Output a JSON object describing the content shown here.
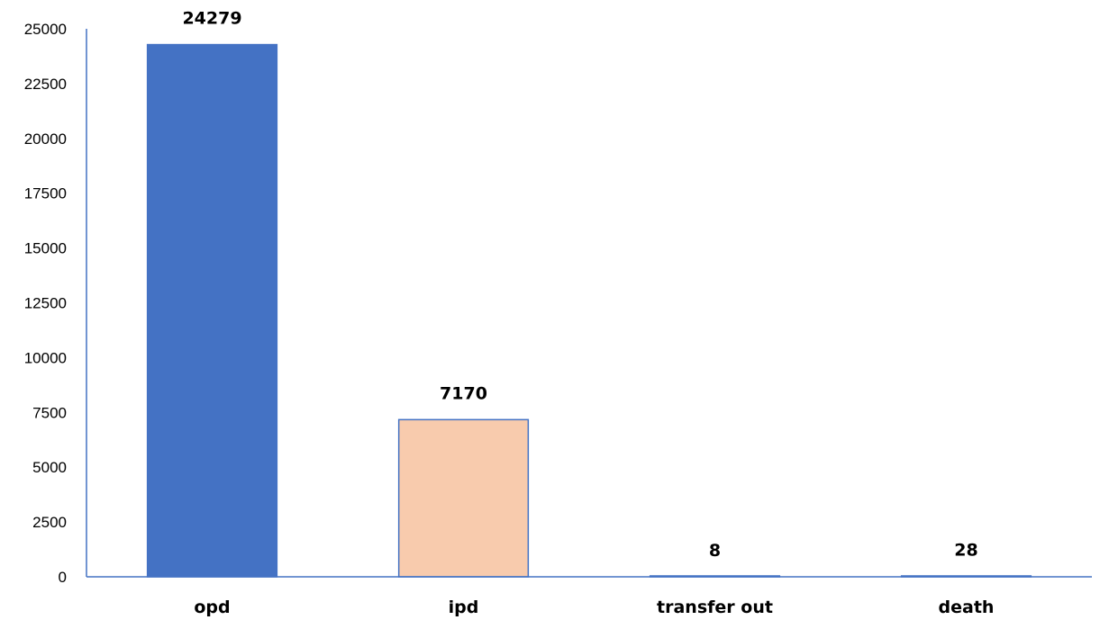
{
  "chart_data": {
    "type": "bar",
    "categories": [
      "opd",
      "ipd",
      "transfer out",
      "death"
    ],
    "values": [
      24279,
      7170,
      8,
      28
    ],
    "data_labels": [
      "24279",
      "7170",
      "8",
      "28"
    ],
    "ylim": [
      0,
      25000
    ],
    "yticks": [
      0,
      2500,
      5000,
      7500,
      10000,
      12500,
      15000,
      17500,
      20000,
      22500,
      25000
    ],
    "ytick_labels": [
      "0",
      "2500",
      "5000",
      "7500",
      "10000",
      "12500",
      "15000",
      "17500",
      "20000",
      "22500",
      "25000"
    ],
    "bar_colors": [
      "#4472C4",
      "#F8CBAD",
      "#4472C4",
      "#4472C4"
    ],
    "bar_edge_color": "#4472C4",
    "axis_color": "#4472C4",
    "grid": false,
    "legend": false
  }
}
